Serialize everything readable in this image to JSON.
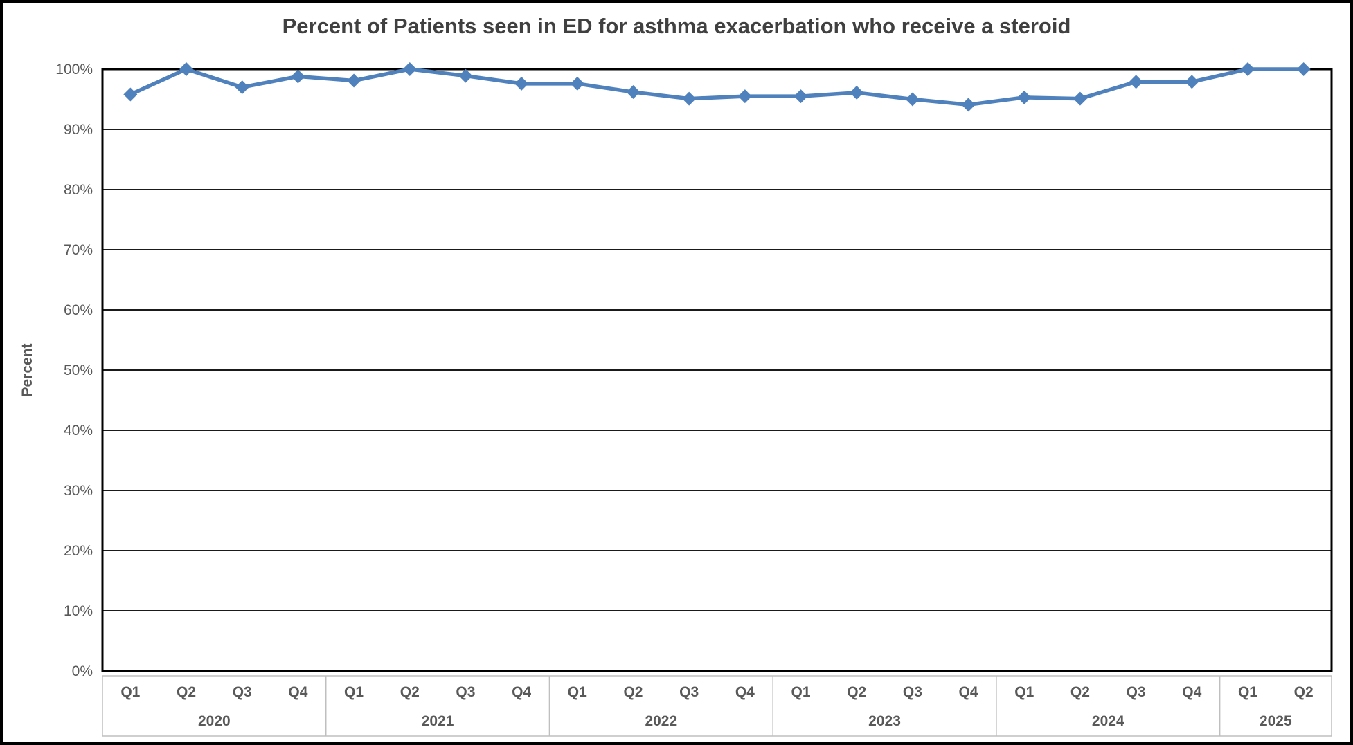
{
  "chart_data": {
    "type": "line",
    "title": "Percent of Patients seen in ED for asthma exacerbation who receive a steroid",
    "ylabel": "Percent",
    "ylim": [
      0,
      100
    ],
    "ytick_labels": [
      "0%",
      "10%",
      "20%",
      "30%",
      "40%",
      "50%",
      "60%",
      "70%",
      "80%",
      "90%",
      "100%"
    ],
    "grid": "horizontal",
    "legend": "none",
    "x_groups": [
      {
        "year": "2020",
        "quarters": [
          "Q1",
          "Q2",
          "Q3",
          "Q4"
        ]
      },
      {
        "year": "2021",
        "quarters": [
          "Q1",
          "Q2",
          "Q3",
          "Q4"
        ]
      },
      {
        "year": "2022",
        "quarters": [
          "Q1",
          "Q2",
          "Q3",
          "Q4"
        ]
      },
      {
        "year": "2023",
        "quarters": [
          "Q1",
          "Q2",
          "Q3",
          "Q4"
        ]
      },
      {
        "year": "2024",
        "quarters": [
          "Q1",
          "Q2",
          "Q3",
          "Q4"
        ]
      },
      {
        "year": "2025",
        "quarters": [
          "Q1",
          "Q2"
        ]
      }
    ],
    "series": [
      {
        "color": "#4F81BD",
        "marker": "diamond",
        "values": [
          95.8,
          100,
          97,
          98.8,
          98.1,
          100,
          98.9,
          97.6,
          97.6,
          96.2,
          95.1,
          95.5,
          95.5,
          96.1,
          95,
          94.1,
          95.3,
          95.1,
          97.9,
          97.9,
          100,
          100
        ]
      }
    ]
  },
  "colors": {
    "line": "#4F81BD",
    "title_text": "#404040",
    "axis_text": "#595959",
    "gridline": "#1a1a1a",
    "plot_border": "#000000",
    "separator": "#BFBFBF",
    "frame_border": "#000000",
    "background": "#FFFFFF"
  }
}
